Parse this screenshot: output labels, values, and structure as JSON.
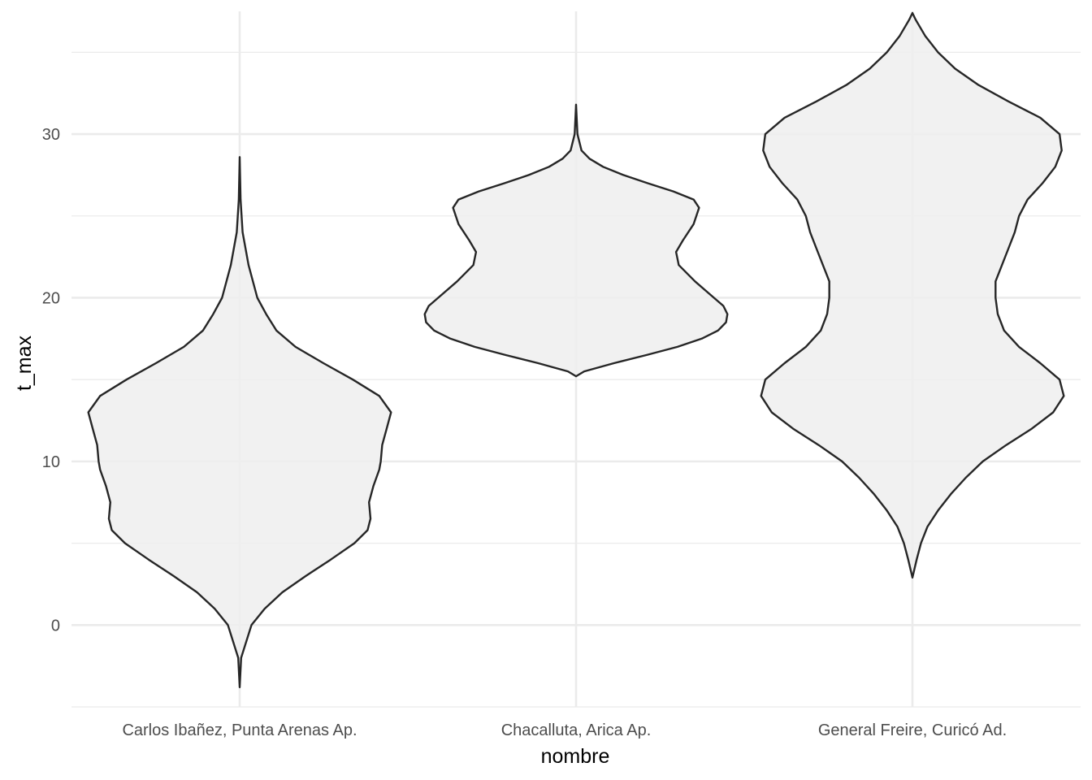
{
  "chart_data": {
    "type": "violin",
    "xlabel": "nombre",
    "ylabel": "t_max",
    "categories": [
      "Carlos Ibañez, Punta Arenas Ap.",
      "Chacalluta, Arica Ap.",
      "General Freire, Curicó Ad."
    ],
    "ylim": [
      -5,
      37.5
    ],
    "yticks": [
      0,
      10,
      20,
      30
    ],
    "grid": true,
    "fill_color": "#efefef",
    "outline_color": "#262626",
    "grid_color": "#ebebeb",
    "violins": [
      {
        "category": "Carlos Ibañez, Punta Arenas Ap.",
        "min": -3.8,
        "max": 28.6,
        "density": [
          [
            -3.8,
            0.0
          ],
          [
            -2.0,
            0.01
          ],
          [
            0.0,
            0.08
          ],
          [
            1.0,
            0.17
          ],
          [
            2.0,
            0.29
          ],
          [
            3.0,
            0.45
          ],
          [
            4.0,
            0.62
          ],
          [
            5.0,
            0.78
          ],
          [
            5.8,
            0.87
          ],
          [
            6.5,
            0.89
          ],
          [
            7.5,
            0.88
          ],
          [
            8.5,
            0.91
          ],
          [
            9.5,
            0.95
          ],
          [
            10.0,
            0.96
          ],
          [
            11.0,
            0.97
          ],
          [
            12.0,
            1.0
          ],
          [
            13.0,
            1.03
          ],
          [
            14.0,
            0.95
          ],
          [
            15.0,
            0.77
          ],
          [
            16.0,
            0.57
          ],
          [
            17.0,
            0.38
          ],
          [
            18.0,
            0.25
          ],
          [
            19.0,
            0.18
          ],
          [
            20.0,
            0.12
          ],
          [
            22.0,
            0.06
          ],
          [
            24.0,
            0.02
          ],
          [
            26.0,
            0.006
          ],
          [
            28.6,
            0.0
          ]
        ]
      },
      {
        "category": "Chacalluta, Arica Ap.",
        "min": 15.2,
        "max": 31.8,
        "density": [
          [
            15.2,
            0.0
          ],
          [
            15.5,
            0.06
          ],
          [
            16.0,
            0.28
          ],
          [
            16.5,
            0.52
          ],
          [
            17.0,
            0.75
          ],
          [
            17.5,
            0.93
          ],
          [
            18.0,
            1.05
          ],
          [
            18.5,
            1.11
          ],
          [
            19.0,
            1.12
          ],
          [
            19.5,
            1.09
          ],
          [
            20.0,
            1.02
          ],
          [
            21.0,
            0.88
          ],
          [
            22.0,
            0.76
          ],
          [
            22.8,
            0.74
          ],
          [
            23.5,
            0.79
          ],
          [
            24.5,
            0.87
          ],
          [
            25.5,
            0.91
          ],
          [
            26.0,
            0.87
          ],
          [
            26.5,
            0.72
          ],
          [
            27.0,
            0.53
          ],
          [
            27.5,
            0.35
          ],
          [
            28.0,
            0.2
          ],
          [
            28.5,
            0.1
          ],
          [
            29.0,
            0.04
          ],
          [
            30.0,
            0.01
          ],
          [
            31.8,
            0.0
          ]
        ]
      },
      {
        "category": "General Freire, Curicó Ad.",
        "min": 2.9,
        "max": 37.4,
        "density": [
          [
            2.9,
            0.0
          ],
          [
            4.0,
            0.02
          ],
          [
            5.0,
            0.04
          ],
          [
            6.0,
            0.07
          ],
          [
            7.0,
            0.12
          ],
          [
            8.0,
            0.18
          ],
          [
            9.0,
            0.25
          ],
          [
            10.0,
            0.33
          ],
          [
            11.0,
            0.44
          ],
          [
            12.0,
            0.56
          ],
          [
            13.0,
            0.66
          ],
          [
            14.0,
            0.71
          ],
          [
            15.0,
            0.69
          ],
          [
            16.0,
            0.6
          ],
          [
            17.0,
            0.5
          ],
          [
            18.0,
            0.43
          ],
          [
            19.0,
            0.4
          ],
          [
            20.0,
            0.39
          ],
          [
            21.0,
            0.39
          ],
          [
            22.0,
            0.42
          ],
          [
            23.0,
            0.45
          ],
          [
            24.0,
            0.48
          ],
          [
            25.0,
            0.5
          ],
          [
            26.0,
            0.54
          ],
          [
            27.0,
            0.61
          ],
          [
            28.0,
            0.67
          ],
          [
            29.0,
            0.7
          ],
          [
            30.0,
            0.69
          ],
          [
            31.0,
            0.6
          ],
          [
            32.0,
            0.45
          ],
          [
            33.0,
            0.31
          ],
          [
            34.0,
            0.2
          ],
          [
            35.0,
            0.12
          ],
          [
            36.0,
            0.06
          ],
          [
            37.0,
            0.015
          ],
          [
            37.4,
            0.0
          ]
        ]
      }
    ]
  }
}
